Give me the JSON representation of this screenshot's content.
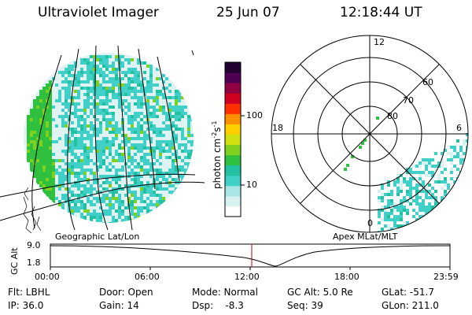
{
  "header": {
    "instrument": "Ultraviolet Imager",
    "date": "25 Jun 07",
    "time": "12:18:44 UT"
  },
  "geo_panel": {
    "label": "Geographic Lat/Lon"
  },
  "polar_panel": {
    "label": "Apex MLat/MLT",
    "mlt_labels": [
      "12",
      "18",
      "6",
      "0"
    ],
    "lat_labels": [
      "60",
      "70",
      "80"
    ]
  },
  "colorbar": {
    "unit_label": "photon cm",
    "unit_sup1": "-2",
    "unit_s": "s",
    "unit_sup2": "-1",
    "tick_labels": [
      "100",
      "10"
    ],
    "colors": [
      "#ffffff",
      "#d8f2f2",
      "#a8e6e6",
      "#40d0c8",
      "#20c0a0",
      "#30c040",
      "#80d020",
      "#d0e010",
      "#ffd000",
      "#ff9000",
      "#ff3000",
      "#d00020",
      "#900040",
      "#500050",
      "#200030"
    ]
  },
  "alt_plot": {
    "ylabel": "GC Alt",
    "y_ticks": [
      "9.0",
      "1.8"
    ],
    "x_ticks": [
      "00:00",
      "06:00",
      "12:00",
      "18:00",
      "23:59"
    ]
  },
  "info_rows": [
    [
      "Flt: LBHL",
      "Door: Open",
      "Mode: Normal",
      "GC Alt: 5.0 Re",
      "GLat: -51.7"
    ],
    [
      "IP: 36.0",
      "Gain: 14",
      "Dsp:    -8.3",
      "Seq: 39",
      "GLon: 211.0"
    ]
  ],
  "colors": {
    "aurora_green": "#30c040",
    "speckle_cyan": "#40d0c8",
    "marker_red": "#cc0000"
  }
}
